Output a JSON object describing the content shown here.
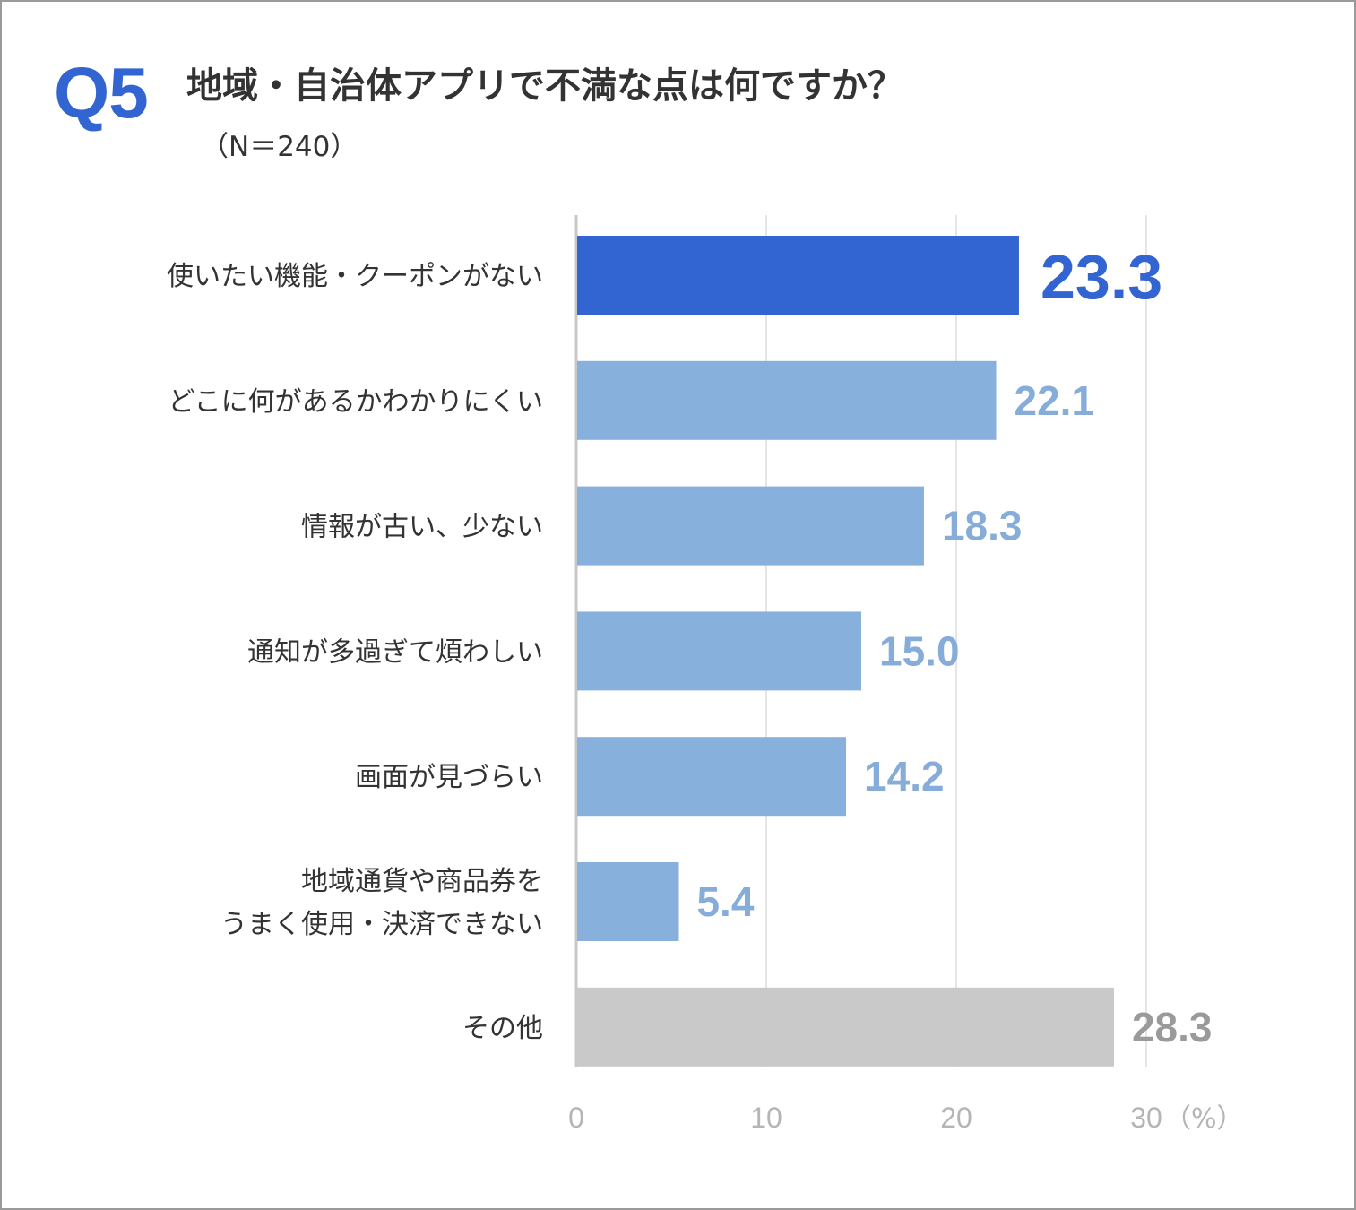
{
  "header": {
    "question_no": "Q5",
    "title": "地域・自治体アプリで不満な点は何ですか？",
    "sample_size": "（N＝240）"
  },
  "colors": {
    "accent": "#3365d2",
    "bar_default": "#88b0dd",
    "bar_other": "#c9c9c9",
    "value_default": "#86acd9",
    "value_other": "#9a9a9a",
    "category_text": "#333333",
    "tick_text": "#b5b5b5",
    "grid": "#e6e6e6",
    "axis": "#c8c8c8"
  },
  "chart_data": {
    "type": "bar",
    "orientation": "horizontal",
    "categories": [
      [
        "使いたい機能・クーポンがない"
      ],
      [
        "どこに何があるかわかりにくい"
      ],
      [
        "情報が古い、少ない"
      ],
      [
        "通知が多過ぎて煩わしい"
      ],
      [
        "画面が見づらい"
      ],
      [
        "地域通貨や商品券を",
        "うまく使用・決済できない"
      ],
      [
        "その他"
      ]
    ],
    "values": [
      23.3,
      22.1,
      18.3,
      15.0,
      14.2,
      5.4,
      28.3
    ],
    "value_labels": [
      "23.3",
      "22.1",
      "18.3",
      "15.0",
      "14.2",
      "5.4",
      "28.3"
    ],
    "highlight": [
      true,
      false,
      false,
      false,
      false,
      false,
      false
    ],
    "other": [
      false,
      false,
      false,
      false,
      false,
      false,
      true
    ],
    "xlim": [
      0,
      30
    ],
    "xticks": [
      0,
      10,
      20,
      30
    ],
    "xtick_labels": [
      "0",
      "10",
      "20",
      "30"
    ],
    "unit_label": "（%）",
    "grid": true
  }
}
